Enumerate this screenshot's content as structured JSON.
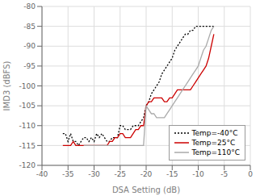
{
  "chart_data": {
    "type": "line",
    "title": "",
    "xlabel": "DSA Setting (dB)",
    "ylabel": "IMD3 (dBFS)",
    "xlim": [
      -40,
      0
    ],
    "ylim": [
      -120,
      -80
    ],
    "xticks": [
      -40,
      -35,
      -30,
      -25,
      -20,
      -15,
      -10,
      -5,
      0
    ],
    "yticks": [
      -120,
      -115,
      -110,
      -105,
      -100,
      -95,
      -90,
      -85,
      -80
    ],
    "grid": true,
    "legend": "lower right",
    "series": [
      {
        "name": "Temp=-40°C",
        "color": "#000000",
        "line_style": "dotted",
        "x": [
          -36,
          -35.5,
          -35,
          -34.5,
          -34,
          -33.5,
          -33,
          -32.5,
          -32,
          -31.5,
          -31,
          -30.5,
          -30,
          -29.5,
          -29,
          -28.5,
          -28,
          -27.5,
          -27,
          -26.5,
          -26,
          -25.5,
          -25,
          -24.5,
          -24,
          -23.5,
          -23,
          -22.5,
          -22,
          -21.5,
          -21,
          -20.5,
          -20,
          -19.5,
          -19,
          -18.5,
          -18,
          -17.5,
          -17,
          -16.5,
          -16,
          -15.5,
          -15,
          -14.5,
          -14,
          -13.5,
          -13,
          -12.5,
          -12,
          -11.5,
          -11,
          -10.5,
          -10,
          -9.5,
          -9,
          -8.5,
          -8,
          -7.5,
          -7
        ],
        "values": [
          -112,
          -112,
          -114,
          -112,
          -114,
          -114,
          -115,
          -114,
          -113,
          -113,
          -114,
          -113,
          -114,
          -112,
          -113,
          -112,
          -113,
          -114,
          -114,
          -113,
          -113,
          -113,
          -110,
          -110,
          -111,
          -111,
          -111,
          -110,
          -110,
          -110,
          -109,
          -108,
          -105,
          -104,
          -102,
          -101,
          -100,
          -99,
          -97,
          -96,
          -95,
          -94,
          -93,
          -91,
          -90,
          -89,
          -88,
          -87,
          -87,
          -86,
          -86,
          -85,
          -85,
          -85,
          -85,
          -85,
          -85,
          -85,
          -85
        ]
      },
      {
        "name": "Temp=25°C",
        "color": "#cc0000",
        "line_style": "solid",
        "x": [
          -36,
          -35.5,
          -35,
          -34.5,
          -34,
          -33.5,
          -33,
          -32.5,
          -32,
          -31.5,
          -31,
          -30.5,
          -30,
          -29.5,
          -29,
          -28.5,
          -28,
          -27.5,
          -27,
          -26.5,
          -26,
          -25.5,
          -25,
          -24.5,
          -24,
          -23.5,
          -23,
          -22.5,
          -22,
          -21.5,
          -21,
          -20.5,
          -20,
          -19.5,
          -19,
          -18.5,
          -18,
          -17.5,
          -17,
          -16.5,
          -16,
          -15.5,
          -15,
          -14.5,
          -14,
          -13.5,
          -13,
          -12.5,
          -12,
          -11.5,
          -11,
          -10.5,
          -10,
          -9.5,
          -9,
          -8.5,
          -8,
          -7.5,
          -7
        ],
        "values": [
          -115,
          -115,
          -115,
          -115,
          -114,
          -115,
          -115,
          -115,
          -115,
          -115,
          -115,
          -115,
          -115,
          -115,
          -115,
          -115,
          -115,
          -115,
          -114,
          -114,
          -113,
          -113,
          -112,
          -112,
          -113,
          -113,
          -113,
          -112,
          -111,
          -111,
          -110,
          -110,
          -105,
          -104,
          -104,
          -103,
          -103,
          -103,
          -103,
          -104,
          -104,
          -103,
          -103,
          -102,
          -101,
          -101,
          -101,
          -101,
          -101,
          -101,
          -100,
          -99,
          -98,
          -97,
          -96,
          -95,
          -93,
          -90,
          -87
        ]
      },
      {
        "name": "Temp=110°C",
        "color": "#aaaaaa",
        "line_style": "solid",
        "x": [
          -32,
          -31.5,
          -31,
          -30.5,
          -30,
          -29.5,
          -29,
          -28.5,
          -28,
          -27.5,
          -27,
          -26.5,
          -26,
          -25.5,
          -25,
          -24.5,
          -24,
          -23.5,
          -23,
          -22.5,
          -22,
          -21.5,
          -21,
          -20.5,
          -20,
          -19.5,
          -19,
          -18.5,
          -18,
          -17.5,
          -17,
          -16.5,
          -16,
          -15.5,
          -15,
          -14.5,
          -14,
          -13.5,
          -13,
          -12.5,
          -12,
          -11.5,
          -11,
          -10.5,
          -10,
          -9.5,
          -9,
          -8.5,
          -8,
          -7.5,
          -7
        ],
        "values": [
          -115,
          -115,
          -115,
          -115,
          -115,
          -115,
          -115,
          -115,
          -115,
          -115,
          -115,
          -115,
          -115,
          -115,
          -115,
          -115,
          -115,
          -115,
          -115,
          -115,
          -115,
          -115,
          -115,
          -115,
          -105,
          -106,
          -107,
          -107,
          -108,
          -108,
          -108,
          -108,
          -107,
          -106,
          -105,
          -104,
          -103,
          -102,
          -101,
          -100,
          -99,
          -98,
          -97,
          -96,
          -95,
          -93,
          -91,
          -90,
          -88,
          -86,
          -85
        ]
      }
    ]
  }
}
